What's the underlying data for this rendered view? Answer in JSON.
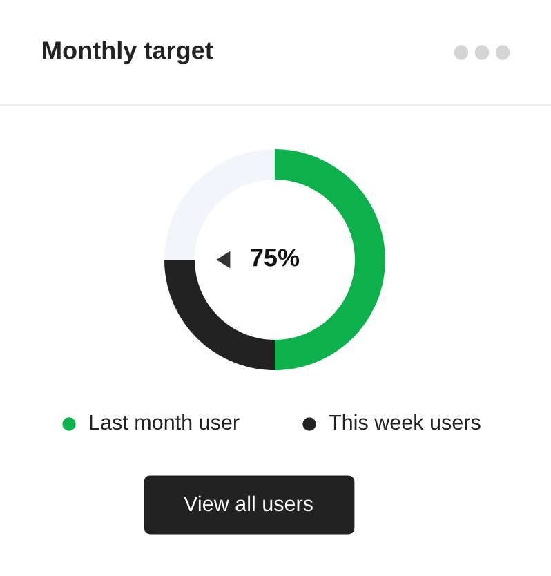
{
  "chart_data": {
    "type": "donut",
    "title": "Monthly target",
    "categories": [
      "Last month user",
      "This week users",
      null
    ],
    "values": [
      50,
      25,
      25
    ],
    "colors": [
      "#0db14b",
      "#222222",
      "#f2f6fa"
    ],
    "legend": "bottom",
    "annotations": [
      "75%",
      "View all users"
    ]
  }
}
